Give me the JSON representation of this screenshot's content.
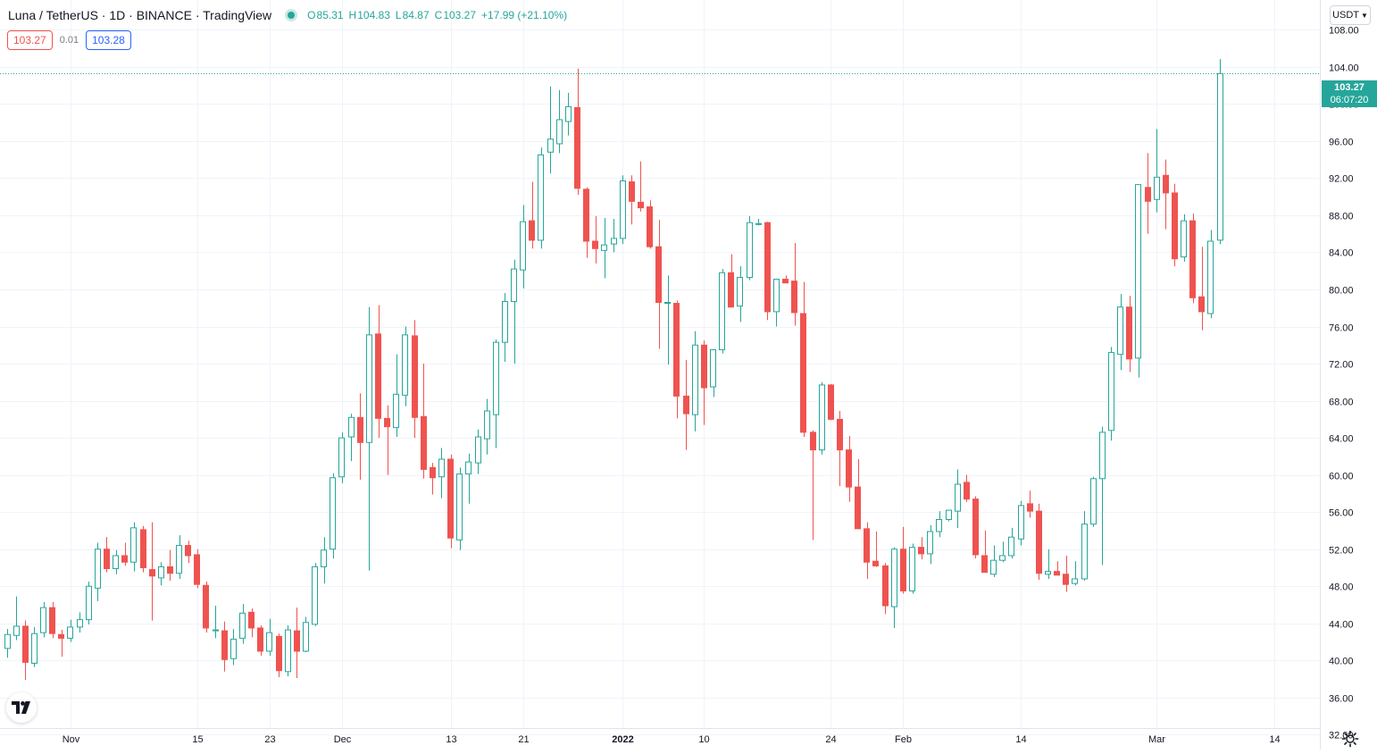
{
  "legend": {
    "symbol": "Luna / TetherUS · 1D · BINANCE · TradingView",
    "open_label": "O",
    "open": "85.31",
    "high_label": "H",
    "high": "104.83",
    "low_label": "L",
    "low": "84.87",
    "close_label": "C",
    "close": "103.27",
    "change": "+17.99 (+21.10%)"
  },
  "quote": {
    "bid": "103.27",
    "spread": "0.01",
    "ask": "103.28"
  },
  "currency": "USDT",
  "last_price": {
    "price": "103.27",
    "countdown": "06:07:20"
  },
  "colors": {
    "up": "#26a69a",
    "down": "#ef5350",
    "grid": "#f0f3fa",
    "axis_text": "#131722"
  },
  "chart_data": {
    "type": "candlestick",
    "title": "Luna / TetherUS · 1D · BINANCE",
    "ylim": [
      30.4,
      111.2
    ],
    "y_ticks": [
      "32.00",
      "36.00",
      "40.00",
      "44.00",
      "48.00",
      "52.00",
      "56.00",
      "60.00",
      "64.00",
      "68.00",
      "72.00",
      "76.00",
      "80.00",
      "84.00",
      "88.00",
      "92.00",
      "96.00",
      "100.00",
      "104.00",
      "108.00"
    ],
    "x_tick_labels": [
      {
        "label": "Nov",
        "index": 7
      },
      {
        "label": "15",
        "index": 21
      },
      {
        "label": "23",
        "index": 29
      },
      {
        "label": "Dec",
        "index": 37
      },
      {
        "label": "13",
        "index": 49
      },
      {
        "label": "21",
        "index": 57
      },
      {
        "label": "2022",
        "index": 68
      },
      {
        "label": "10",
        "index": 77
      },
      {
        "label": "24",
        "index": 91
      },
      {
        "label": "Feb",
        "index": 99
      },
      {
        "label": "14",
        "index": 112
      },
      {
        "label": "Mar",
        "index": 127
      },
      {
        "label": "14",
        "index": 140
      }
    ],
    "series": [
      {
        "o": 41.3,
        "h": 43.4,
        "l": 40.3,
        "c": 42.8
      },
      {
        "o": 42.7,
        "h": 46.9,
        "l": 42.2,
        "c": 43.7
      },
      {
        "o": 43.7,
        "h": 44.3,
        "l": 37.9,
        "c": 39.8
      },
      {
        "o": 39.7,
        "h": 43.6,
        "l": 39.3,
        "c": 42.9
      },
      {
        "o": 43.0,
        "h": 46.3,
        "l": 42.5,
        "c": 45.7
      },
      {
        "o": 45.7,
        "h": 46.3,
        "l": 42.4,
        "c": 42.9
      },
      {
        "o": 42.8,
        "h": 43.3,
        "l": 40.4,
        "c": 42.4
      },
      {
        "o": 42.4,
        "h": 44.4,
        "l": 42.0,
        "c": 43.6
      },
      {
        "o": 43.6,
        "h": 45.2,
        "l": 43.0,
        "c": 44.4
      },
      {
        "o": 44.4,
        "h": 48.5,
        "l": 43.9,
        "c": 48.0
      },
      {
        "o": 47.8,
        "h": 52.7,
        "l": 46.4,
        "c": 52.0
      },
      {
        "o": 52.0,
        "h": 53.3,
        "l": 49.5,
        "c": 49.9
      },
      {
        "o": 49.9,
        "h": 51.9,
        "l": 49.3,
        "c": 51.3
      },
      {
        "o": 51.3,
        "h": 52.7,
        "l": 50.2,
        "c": 50.6
      },
      {
        "o": 50.6,
        "h": 54.9,
        "l": 49.6,
        "c": 54.3
      },
      {
        "o": 54.1,
        "h": 54.5,
        "l": 49.5,
        "c": 50.0
      },
      {
        "o": 49.8,
        "h": 54.9,
        "l": 44.3,
        "c": 49.1
      },
      {
        "o": 48.9,
        "h": 50.6,
        "l": 48.1,
        "c": 50.1
      },
      {
        "o": 50.1,
        "h": 51.9,
        "l": 48.6,
        "c": 49.4
      },
      {
        "o": 49.4,
        "h": 53.5,
        "l": 48.8,
        "c": 52.4
      },
      {
        "o": 52.4,
        "h": 52.9,
        "l": 50.5,
        "c": 51.3
      },
      {
        "o": 51.4,
        "h": 52.0,
        "l": 47.8,
        "c": 48.2
      },
      {
        "o": 48.1,
        "h": 48.5,
        "l": 43.0,
        "c": 43.5
      },
      {
        "o": 43.2,
        "h": 45.9,
        "l": 42.4,
        "c": 43.3
      },
      {
        "o": 43.2,
        "h": 44.2,
        "l": 38.8,
        "c": 40.1
      },
      {
        "o": 40.2,
        "h": 43.4,
        "l": 39.5,
        "c": 42.3
      },
      {
        "o": 42.4,
        "h": 46.1,
        "l": 41.8,
        "c": 45.1
      },
      {
        "o": 45.2,
        "h": 45.6,
        "l": 42.5,
        "c": 43.5
      },
      {
        "o": 43.5,
        "h": 43.8,
        "l": 40.5,
        "c": 41.0
      },
      {
        "o": 41.0,
        "h": 44.5,
        "l": 40.5,
        "c": 43.0
      },
      {
        "o": 42.6,
        "h": 42.9,
        "l": 38.2,
        "c": 38.9
      },
      {
        "o": 38.8,
        "h": 43.8,
        "l": 38.3,
        "c": 43.3
      },
      {
        "o": 43.2,
        "h": 45.7,
        "l": 38.1,
        "c": 41.0
      },
      {
        "o": 41.0,
        "h": 44.7,
        "l": 40.9,
        "c": 44.1
      },
      {
        "o": 43.9,
        "h": 50.5,
        "l": 43.7,
        "c": 50.1
      },
      {
        "o": 50.1,
        "h": 53.3,
        "l": 48.3,
        "c": 51.9
      },
      {
        "o": 52.0,
        "h": 60.2,
        "l": 51.0,
        "c": 59.7
      },
      {
        "o": 59.8,
        "h": 64.6,
        "l": 59.1,
        "c": 64.0
      },
      {
        "o": 64.1,
        "h": 66.6,
        "l": 61.5,
        "c": 66.2
      },
      {
        "o": 66.2,
        "h": 68.8,
        "l": 59.5,
        "c": 63.5
      },
      {
        "o": 63.5,
        "h": 78.1,
        "l": 49.7,
        "c": 75.1
      },
      {
        "o": 75.2,
        "h": 78.3,
        "l": 64.0,
        "c": 66.1
      },
      {
        "o": 66.1,
        "h": 67.5,
        "l": 60.0,
        "c": 65.2
      },
      {
        "o": 65.1,
        "h": 73.0,
        "l": 64.1,
        "c": 68.7
      },
      {
        "o": 68.6,
        "h": 76.0,
        "l": 67.4,
        "c": 75.1
      },
      {
        "o": 75.0,
        "h": 76.7,
        "l": 64.0,
        "c": 66.2
      },
      {
        "o": 66.3,
        "h": 72.0,
        "l": 59.6,
        "c": 60.6
      },
      {
        "o": 60.8,
        "h": 61.3,
        "l": 57.9,
        "c": 59.7
      },
      {
        "o": 59.8,
        "h": 62.9,
        "l": 57.5,
        "c": 61.7
      },
      {
        "o": 61.7,
        "h": 62.2,
        "l": 52.1,
        "c": 53.2
      },
      {
        "o": 53.0,
        "h": 60.8,
        "l": 51.9,
        "c": 60.1
      },
      {
        "o": 60.1,
        "h": 62.3,
        "l": 56.9,
        "c": 61.4
      },
      {
        "o": 61.3,
        "h": 64.9,
        "l": 60.1,
        "c": 64.1
      },
      {
        "o": 63.9,
        "h": 68.2,
        "l": 62.2,
        "c": 66.9
      },
      {
        "o": 66.5,
        "h": 74.6,
        "l": 62.9,
        "c": 74.3
      },
      {
        "o": 74.3,
        "h": 79.6,
        "l": 72.2,
        "c": 78.7
      },
      {
        "o": 78.7,
        "h": 83.2,
        "l": 72.0,
        "c": 82.2
      },
      {
        "o": 82.1,
        "h": 89.1,
        "l": 80.1,
        "c": 87.3
      },
      {
        "o": 87.4,
        "h": 91.6,
        "l": 84.4,
        "c": 85.3
      },
      {
        "o": 85.3,
        "h": 95.3,
        "l": 84.4,
        "c": 94.5
      },
      {
        "o": 94.8,
        "h": 101.9,
        "l": 92.5,
        "c": 96.2
      },
      {
        "o": 95.7,
        "h": 101.5,
        "l": 94.7,
        "c": 98.3
      },
      {
        "o": 98.1,
        "h": 101.2,
        "l": 96.6,
        "c": 99.7
      },
      {
        "o": 99.6,
        "h": 103.8,
        "l": 90.2,
        "c": 90.9
      },
      {
        "o": 90.8,
        "h": 91.0,
        "l": 83.4,
        "c": 85.2
      },
      {
        "o": 85.2,
        "h": 87.9,
        "l": 82.8,
        "c": 84.4
      },
      {
        "o": 84.2,
        "h": 87.7,
        "l": 81.2,
        "c": 84.8
      },
      {
        "o": 84.9,
        "h": 87.6,
        "l": 84.0,
        "c": 85.5
      },
      {
        "o": 85.5,
        "h": 92.3,
        "l": 84.9,
        "c": 91.7
      },
      {
        "o": 91.6,
        "h": 92.3,
        "l": 87.0,
        "c": 89.5
      },
      {
        "o": 89.4,
        "h": 93.8,
        "l": 88.4,
        "c": 88.8
      },
      {
        "o": 88.9,
        "h": 89.6,
        "l": 84.4,
        "c": 84.6
      },
      {
        "o": 84.6,
        "h": 87.5,
        "l": 73.6,
        "c": 78.6
      },
      {
        "o": 78.6,
        "h": 81.5,
        "l": 71.9,
        "c": 78.6
      },
      {
        "o": 78.5,
        "h": 78.8,
        "l": 66.1,
        "c": 68.5
      },
      {
        "o": 68.5,
        "h": 72.4,
        "l": 62.7,
        "c": 66.6
      },
      {
        "o": 66.5,
        "h": 75.5,
        "l": 64.7,
        "c": 74.0
      },
      {
        "o": 74.0,
        "h": 74.5,
        "l": 65.4,
        "c": 69.4
      },
      {
        "o": 69.5,
        "h": 73.4,
        "l": 68.4,
        "c": 73.5
      },
      {
        "o": 73.5,
        "h": 82.2,
        "l": 73.1,
        "c": 81.8
      },
      {
        "o": 81.8,
        "h": 83.8,
        "l": 78.3,
        "c": 78.1
      },
      {
        "o": 78.2,
        "h": 82.5,
        "l": 76.5,
        "c": 81.3
      },
      {
        "o": 81.3,
        "h": 87.9,
        "l": 81.0,
        "c": 87.2
      },
      {
        "o": 87.0,
        "h": 87.6,
        "l": 86.9,
        "c": 87.1
      },
      {
        "o": 87.2,
        "h": 87.3,
        "l": 76.7,
        "c": 77.6
      },
      {
        "o": 77.6,
        "h": 81.1,
        "l": 76.0,
        "c": 81.1
      },
      {
        "o": 81.1,
        "h": 81.5,
        "l": 80.8,
        "c": 80.7
      },
      {
        "o": 80.9,
        "h": 85.0,
        "l": 76.1,
        "c": 77.5
      },
      {
        "o": 77.4,
        "h": 80.8,
        "l": 64.1,
        "c": 64.6
      },
      {
        "o": 64.6,
        "h": 64.8,
        "l": 53.0,
        "c": 62.7
      },
      {
        "o": 62.7,
        "h": 70.0,
        "l": 62.2,
        "c": 69.7
      },
      {
        "o": 69.7,
        "h": 69.8,
        "l": 65.9,
        "c": 66.0
      },
      {
        "o": 66.0,
        "h": 66.9,
        "l": 58.8,
        "c": 62.7
      },
      {
        "o": 62.7,
        "h": 64.2,
        "l": 57.1,
        "c": 58.7
      },
      {
        "o": 58.7,
        "h": 61.7,
        "l": 54.6,
        "c": 54.2
      },
      {
        "o": 54.2,
        "h": 54.9,
        "l": 48.8,
        "c": 50.6
      },
      {
        "o": 50.7,
        "h": 53.9,
        "l": 50.1,
        "c": 50.2
      },
      {
        "o": 50.2,
        "h": 50.5,
        "l": 45.0,
        "c": 45.9
      },
      {
        "o": 45.8,
        "h": 52.2,
        "l": 43.5,
        "c": 52.0
      },
      {
        "o": 52.0,
        "h": 54.4,
        "l": 47.2,
        "c": 47.5
      },
      {
        "o": 47.5,
        "h": 52.6,
        "l": 47.2,
        "c": 52.2
      },
      {
        "o": 52.2,
        "h": 53.3,
        "l": 50.9,
        "c": 51.5
      },
      {
        "o": 51.5,
        "h": 54.6,
        "l": 50.4,
        "c": 53.9
      },
      {
        "o": 53.9,
        "h": 56.1,
        "l": 53.3,
        "c": 55.2
      },
      {
        "o": 55.2,
        "h": 56.0,
        "l": 55.0,
        "c": 56.2
      },
      {
        "o": 56.1,
        "h": 60.6,
        "l": 54.3,
        "c": 59.0
      },
      {
        "o": 59.2,
        "h": 60.0,
        "l": 57.1,
        "c": 57.4
      },
      {
        "o": 57.4,
        "h": 57.7,
        "l": 51.0,
        "c": 51.4
      },
      {
        "o": 51.3,
        "h": 54.0,
        "l": 50.1,
        "c": 49.5
      },
      {
        "o": 49.3,
        "h": 52.4,
        "l": 49.0,
        "c": 50.8
      },
      {
        "o": 50.8,
        "h": 52.8,
        "l": 50.6,
        "c": 51.3
      },
      {
        "o": 51.3,
        "h": 54.3,
        "l": 51.0,
        "c": 53.3
      },
      {
        "o": 53.1,
        "h": 57.2,
        "l": 52.4,
        "c": 56.7
      },
      {
        "o": 56.9,
        "h": 58.3,
        "l": 55.4,
        "c": 56.1
      },
      {
        "o": 56.1,
        "h": 56.9,
        "l": 48.7,
        "c": 49.4
      },
      {
        "o": 49.3,
        "h": 52.0,
        "l": 48.8,
        "c": 49.6
      },
      {
        "o": 49.6,
        "h": 50.7,
        "l": 49.2,
        "c": 49.2
      },
      {
        "o": 49.3,
        "h": 51.3,
        "l": 47.4,
        "c": 48.2
      },
      {
        "o": 48.3,
        "h": 50.7,
        "l": 48.1,
        "c": 48.8
      },
      {
        "o": 48.8,
        "h": 56.1,
        "l": 48.6,
        "c": 54.7
      },
      {
        "o": 54.7,
        "h": 59.8,
        "l": 54.4,
        "c": 59.6
      },
      {
        "o": 59.6,
        "h": 65.2,
        "l": 50.3,
        "c": 64.6
      },
      {
        "o": 64.8,
        "h": 73.8,
        "l": 63.7,
        "c": 73.2
      },
      {
        "o": 73.0,
        "h": 79.5,
        "l": 71.3,
        "c": 78.1
      },
      {
        "o": 78.1,
        "h": 79.3,
        "l": 71.1,
        "c": 72.5
      },
      {
        "o": 72.6,
        "h": 90.7,
        "l": 70.5,
        "c": 91.3
      },
      {
        "o": 91.0,
        "h": 94.7,
        "l": 86.0,
        "c": 89.5
      },
      {
        "o": 89.7,
        "h": 97.3,
        "l": 88.3,
        "c": 92.1
      },
      {
        "o": 92.3,
        "h": 94.0,
        "l": 86.5,
        "c": 90.4
      },
      {
        "o": 90.4,
        "h": 91.4,
        "l": 82.5,
        "c": 83.3
      },
      {
        "o": 83.5,
        "h": 88.1,
        "l": 83.0,
        "c": 87.4
      },
      {
        "o": 87.4,
        "h": 88.2,
        "l": 78.5,
        "c": 79.1
      },
      {
        "o": 79.2,
        "h": 84.6,
        "l": 75.6,
        "c": 77.6
      },
      {
        "o": 77.4,
        "h": 86.4,
        "l": 76.9,
        "c": 85.2
      },
      {
        "o": 85.31,
        "h": 104.83,
        "l": 84.87,
        "c": 103.27
      }
    ]
  }
}
